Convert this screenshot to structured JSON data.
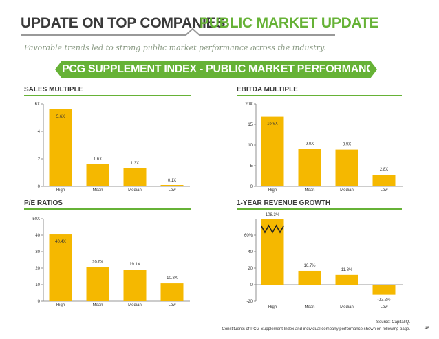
{
  "header": {
    "left_title": "UPDATE ON TOP COMPANIES",
    "right_title": "PUBLIC MARKET UPDATE"
  },
  "subtitle": "Favorable trends led to strong public market performance across the industry.",
  "banner": "PCG SUPPLEMENT INDEX - PUBLIC MARKET PERFORMANCE",
  "colors": {
    "bar": "#f5b800",
    "accent": "#66b236",
    "title": "#3a3a3a"
  },
  "footer": {
    "source": "Source: CapitalIQ.",
    "note": "Constituents of PCG Supplement Index and individual company performance shown on following page.",
    "page_number": "48"
  },
  "chart_data": [
    {
      "type": "bar",
      "title": "SALES MULTIPLE",
      "categories": [
        "High",
        "Mean",
        "Median",
        "Low"
      ],
      "values": [
        5.6,
        1.6,
        1.3,
        0.1
      ],
      "value_labels": [
        "5.6X",
        "1.6X",
        "1.3X",
        "0.1X"
      ],
      "ylim": [
        0,
        6
      ],
      "yticks": [
        0,
        2,
        4,
        6
      ],
      "ytick_labels": [
        "0",
        "2",
        "4",
        "6X"
      ]
    },
    {
      "type": "bar",
      "title": "EBITDA MULTIPLE",
      "categories": [
        "High",
        "Mean",
        "Median",
        "Low"
      ],
      "values": [
        16.9,
        9.0,
        8.9,
        2.8
      ],
      "value_labels": [
        "16.9X",
        "9.0X",
        "8.9X",
        "2.8X"
      ],
      "ylim": [
        0,
        20
      ],
      "yticks": [
        0,
        5,
        10,
        15,
        20
      ],
      "ytick_labels": [
        "0",
        "5",
        "10",
        "15",
        "20X"
      ]
    },
    {
      "type": "bar",
      "title": "P/E RATIOS",
      "categories": [
        "High",
        "Mean",
        "Median",
        "Low"
      ],
      "values": [
        40.4,
        20.6,
        19.1,
        10.8
      ],
      "value_labels": [
        "40.4X",
        "20.6X",
        "19.1X",
        "10.8X"
      ],
      "ylim": [
        0,
        50
      ],
      "yticks": [
        0,
        10,
        20,
        30,
        40,
        50
      ],
      "ytick_labels": [
        "0",
        "10",
        "20",
        "30",
        "40",
        "50X"
      ]
    },
    {
      "type": "bar",
      "title": "1-YEAR REVENUE GROWTH",
      "categories": [
        "High",
        "Mean",
        "Median",
        "Low"
      ],
      "values": [
        108.3,
        16.7,
        11.8,
        -12.2
      ],
      "value_labels": [
        "108.3%",
        "16.7%",
        "11.8%",
        "-12.2%"
      ],
      "ylim": [
        -20,
        80
      ],
      "yticks": [
        -20,
        0,
        20,
        40,
        60
      ],
      "ytick_labels": [
        "-20",
        "0",
        "20",
        "40",
        "60%"
      ],
      "axis_break": true
    }
  ]
}
